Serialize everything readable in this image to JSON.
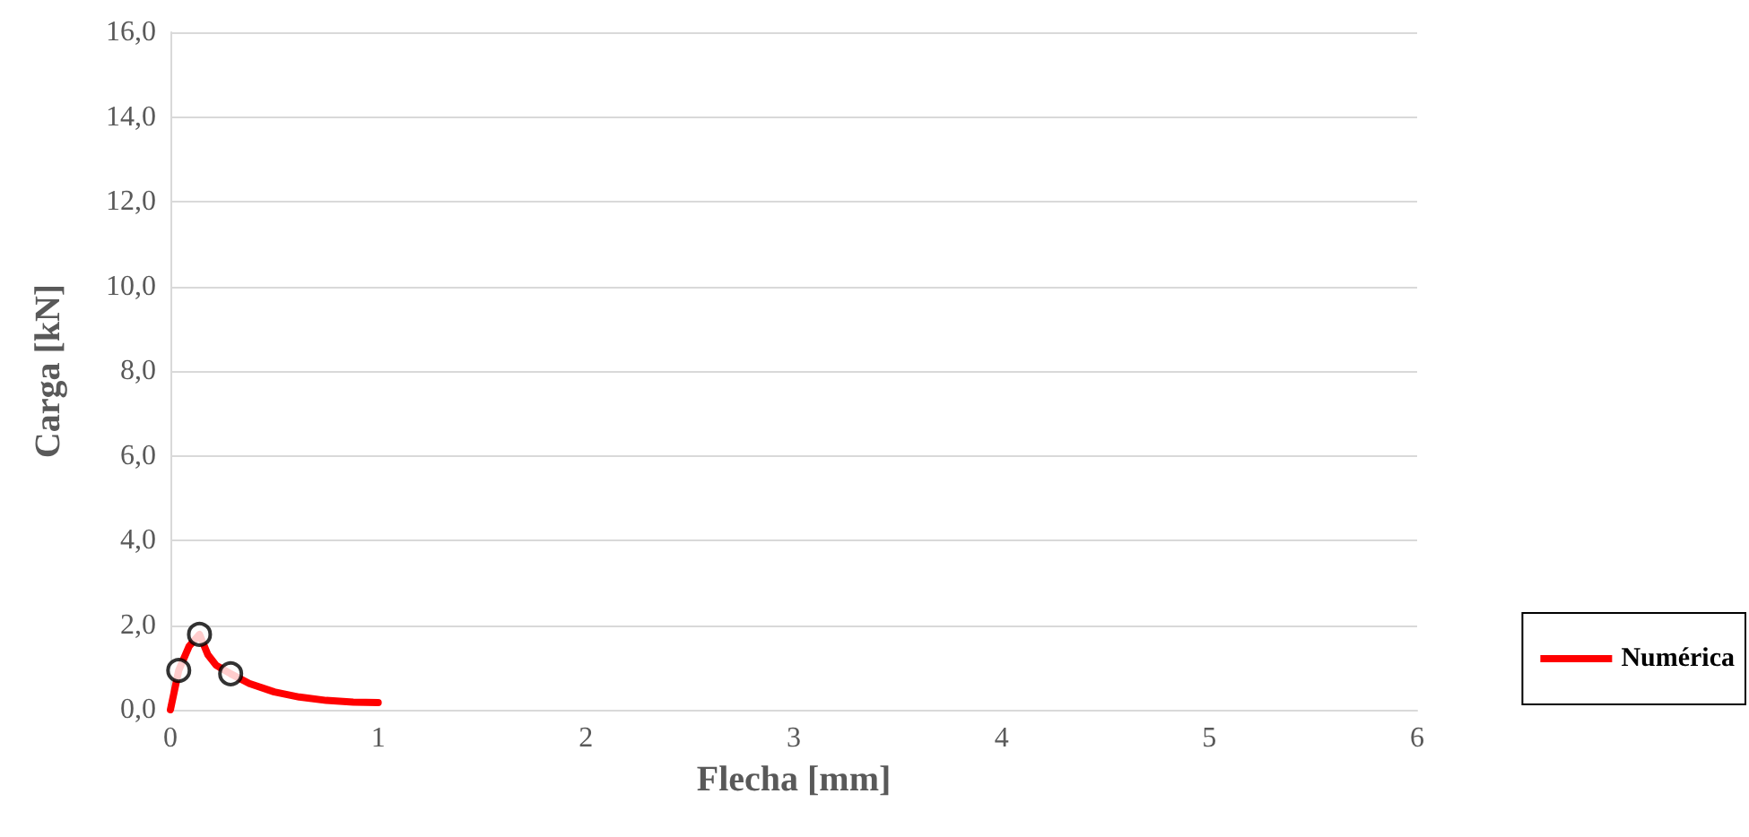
{
  "chart_data": {
    "type": "line",
    "xlabel": "Flecha [mm]",
    "ylabel": "Carga [kN]",
    "xlim": [
      0,
      6
    ],
    "xticks": [
      0,
      1,
      2,
      3,
      4,
      5,
      6
    ],
    "ylim": [
      0,
      16
    ],
    "yticks": [
      {
        "value": 0,
        "label": "0,0"
      },
      {
        "value": 2,
        "label": "2,0"
      },
      {
        "value": 4,
        "label": "4,0"
      },
      {
        "value": 6,
        "label": "6,0"
      },
      {
        "value": 8,
        "label": "8,0"
      },
      {
        "value": 10,
        "label": "10,0"
      },
      {
        "value": 12,
        "label": "12,0"
      },
      {
        "value": 14,
        "label": "14,0"
      },
      {
        "value": 16,
        "label": "16,0"
      }
    ],
    "grid": "y",
    "legend": "right",
    "marker": "none",
    "line_style": "solid",
    "series": [
      {
        "name": "Numérica",
        "color": "#ff0000",
        "x": [
          0,
          0.04,
          0.09,
          0.14,
          0.18,
          0.22,
          0.29,
          0.38,
          0.5,
          0.62,
          0.75,
          0.88,
          1.0
        ],
        "values": [
          0,
          0.93,
          1.5,
          1.78,
          1.3,
          1.05,
          0.85,
          0.62,
          0.42,
          0.3,
          0.22,
          0.18,
          0.17
        ]
      },
      {
        "type": "scatter",
        "marker": "circle",
        "color": "#000000",
        "x": [
          0.04,
          0.14,
          0.29
        ],
        "values": [
          0.93,
          1.78,
          0.85
        ]
      }
    ]
  }
}
